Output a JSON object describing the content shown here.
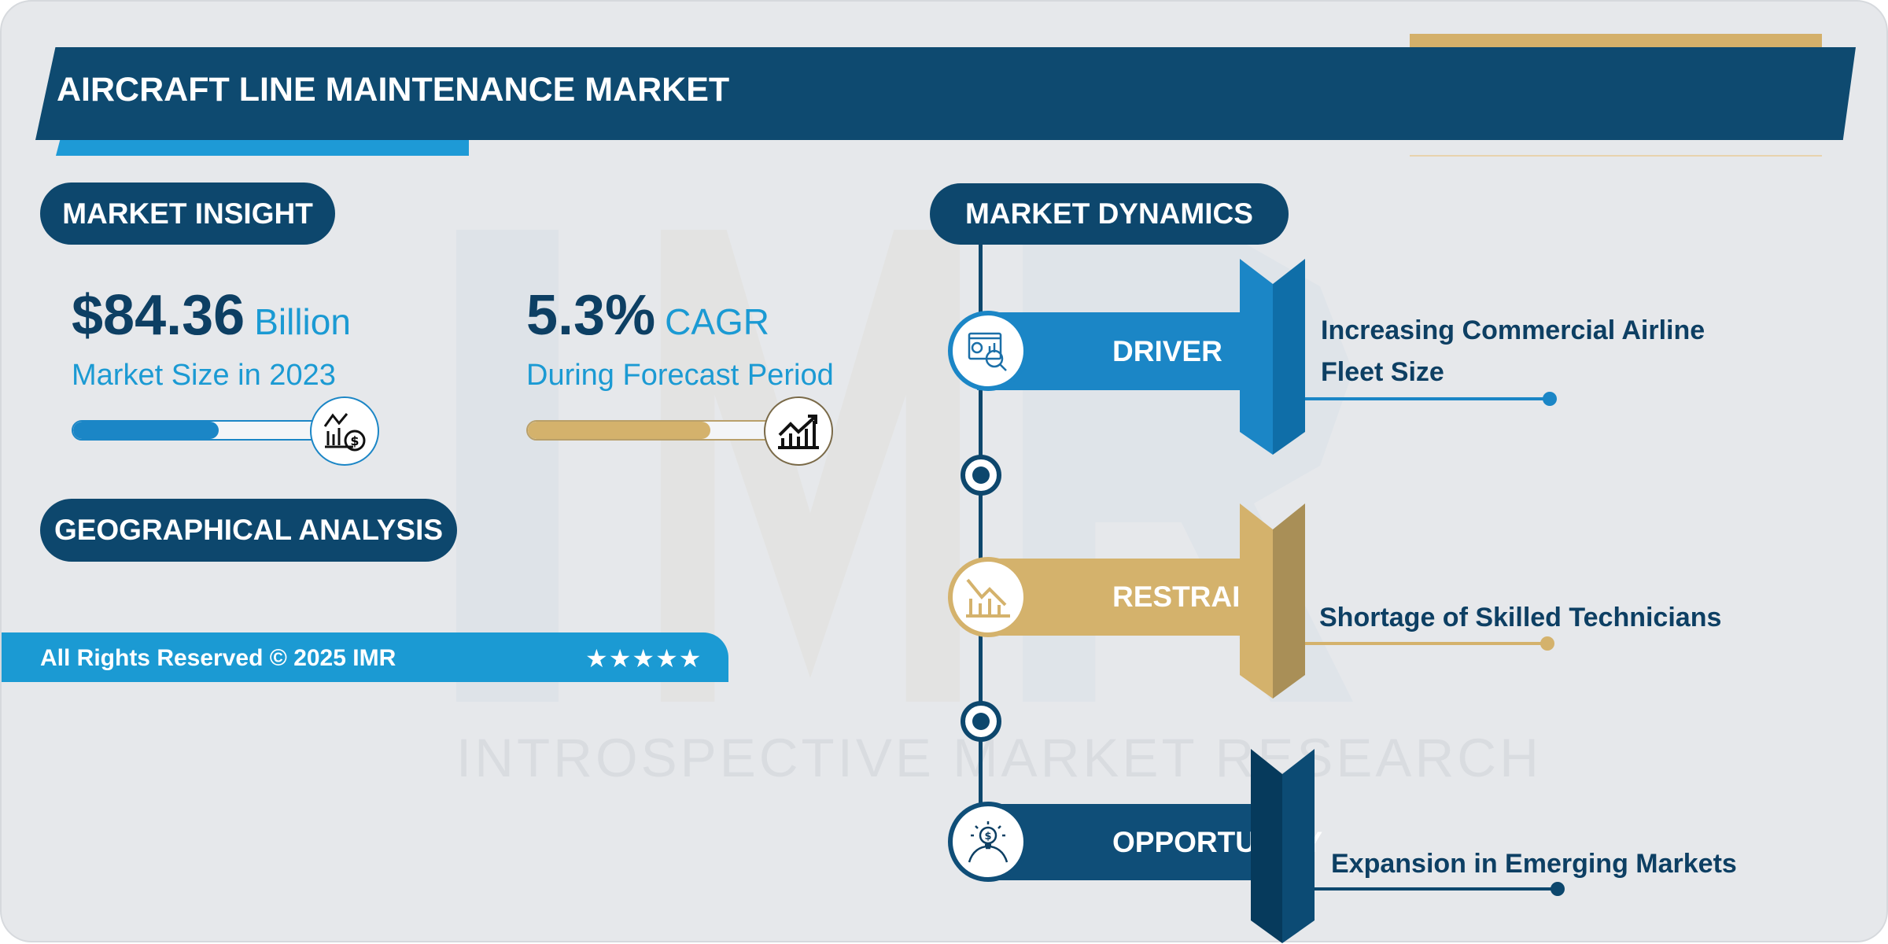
{
  "title": "AIRCRAFT LINE MAINTENANCE MARKET",
  "watermark": {
    "letters": "IMR",
    "text": "INTROSPECTIVE MARKET RESEARCH"
  },
  "insight": {
    "heading": "MARKET INSIGHT",
    "market_size": {
      "value": "$84.36",
      "unit": "Billion",
      "label": "Market Size in 2023",
      "progress": 0.52,
      "icon": "chart-dollar-icon"
    },
    "cagr": {
      "value": "5.3%",
      "unit": "CAGR",
      "label": "During Forecast Period",
      "progress": 0.67,
      "icon": "growth-chart-icon"
    }
  },
  "geo_heading": "GEOGRAPHICAL ANALYSIS",
  "footer": {
    "copyright": "All Rights Reserved © 2025 IMR",
    "stars": "★★★★★",
    "rating": 5
  },
  "dynamics": {
    "heading": "MARKET DYNAMICS",
    "items": [
      {
        "label": "DRIVER",
        "text1": "Increasing Commercial Airline",
        "text2": "Fleet Size",
        "icon": "analytics-search-icon",
        "color": "#1b86c6"
      },
      {
        "label": "RESTRAINT",
        "text1": "",
        "text2": "Shortage of Skilled Technicians",
        "icon": "declining-chart-icon",
        "color": "#d4b26c"
      },
      {
        "label": "OPPORTUNITY",
        "text1": "",
        "text2": "Expansion in Emerging Markets",
        "icon": "idea-dollar-icon",
        "color": "#0f4e78"
      }
    ]
  },
  "colors": {
    "navy": "#0d476d",
    "blue": "#1b9ad3",
    "gold": "#d4b26c"
  }
}
